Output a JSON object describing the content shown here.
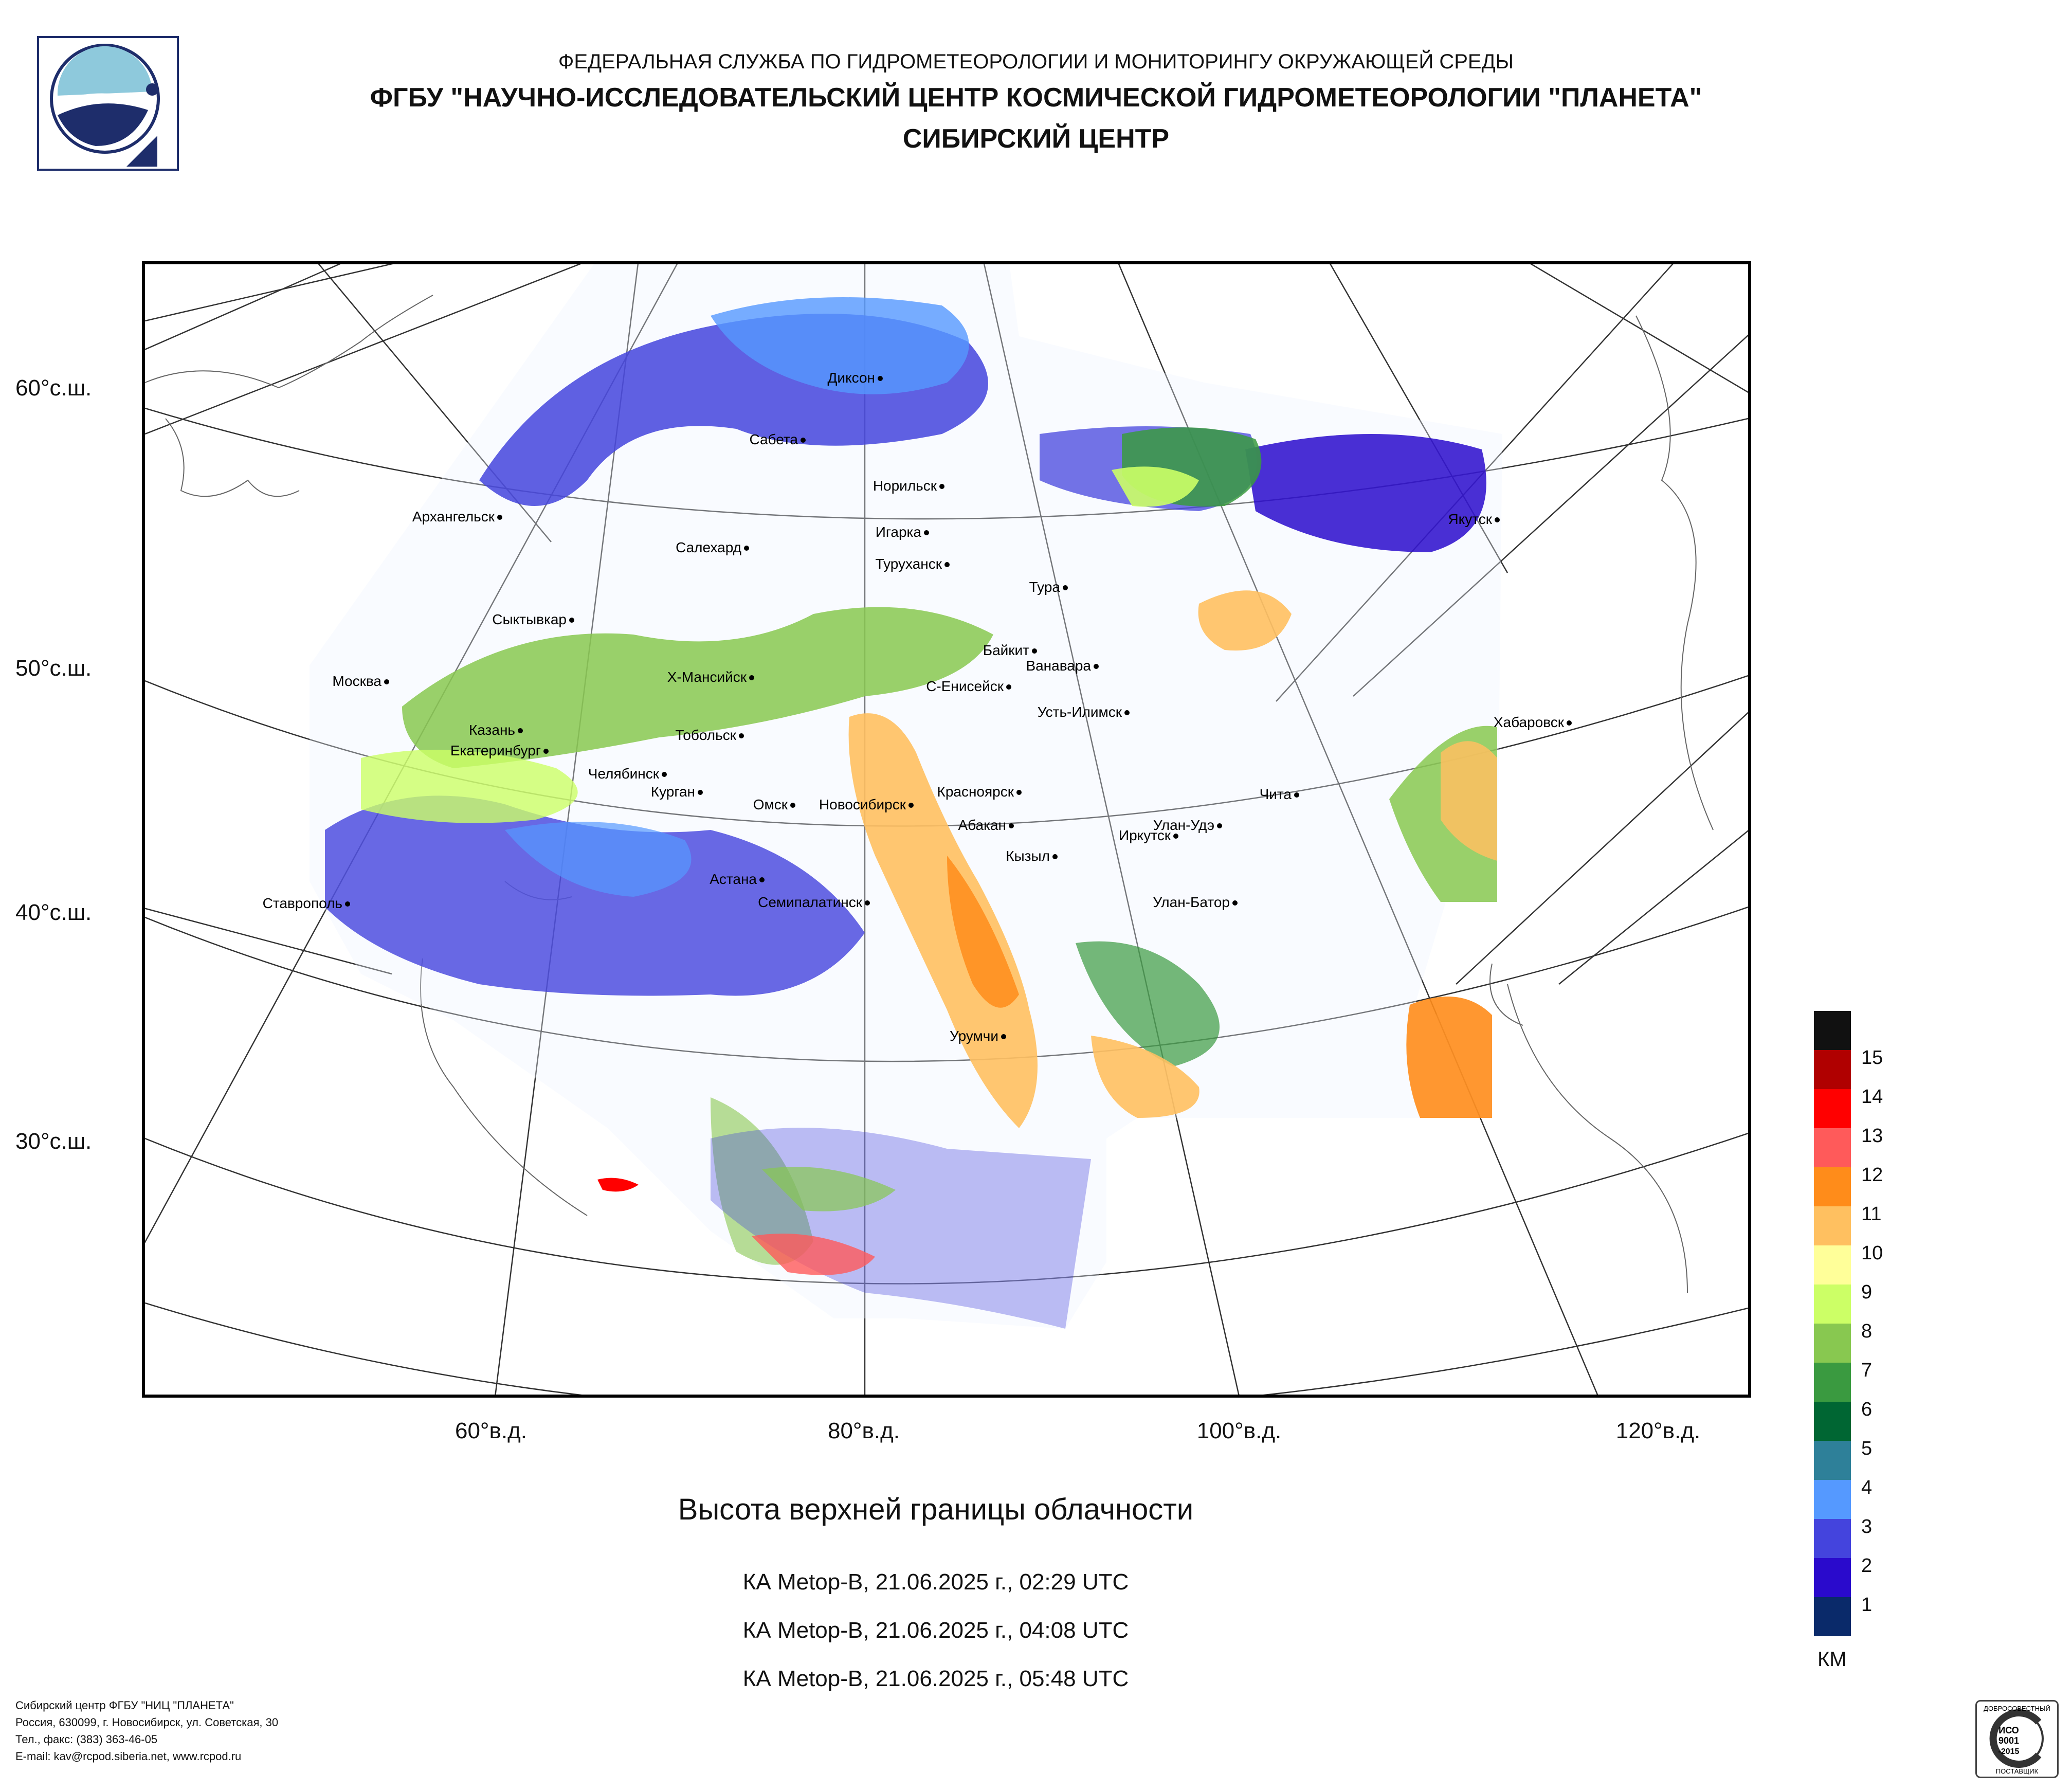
{
  "header": {
    "line1": "ФЕДЕРАЛЬНАЯ СЛУЖБА ПО ГИДРОМЕТЕОРОЛОГИИ И МОНИТОРИНГУ ОКРУЖАЮЩЕЙ СРЕДЫ",
    "line2": "ФГБУ \"НАУЧНО-ИССЛЕДОВАТЕЛЬСКИЙ ЦЕНТР КОСМИЧЕСКОЙ ГИДРОМЕТЕОРОЛОГИИ \"ПЛАНЕТА\"",
    "line3": "СИБИРСКИЙ ЦЕНТР"
  },
  "map": {
    "lat_labels": [
      "60°с.ш.",
      "50°с.ш.",
      "40°с.ш.",
      "30°с.ш."
    ],
    "lon_labels": [
      "60°в.д.",
      "80°в.д.",
      "100°в.д.",
      "120°в.д."
    ],
    "cities": [
      "Диксон",
      "Сабета",
      "Норильск",
      "Архангельск",
      "Салехард",
      "Игарка",
      "Туруханск",
      "Тура",
      "Якутск",
      "Сыктывкар",
      "Байкит",
      "Ванавара",
      "Москва",
      "Х-Мансийск",
      "С-Енисейск",
      "Усть-Илимск",
      "Хабаровск",
      "Казань",
      "Тобольск",
      "Екатеринбург",
      "Челябинск",
      "Курган",
      "Красноярск",
      "Омск",
      "Новосибирск",
      "Абакан",
      "Чита",
      "Улан-Удэ",
      "Иркутск",
      "Кызыл",
      "Астана",
      "Ставрополь",
      "Семипалатинск",
      "Улан-Батор",
      "Урумчи"
    ]
  },
  "title": "Высота верхней границы облачности",
  "passes": [
    "КА Metop-B, 21.06.2025 г., 02:29 UTC",
    "КА Metop-B, 21.06.2025 г., 04:08 UTC",
    "КА Metop-B, 21.06.2025 г., 05:48 UTC"
  ],
  "legend": {
    "unit": "КМ",
    "items": [
      {
        "label": "15",
        "color": "#111111"
      },
      {
        "label": "14",
        "color": "#b00000"
      },
      {
        "label": "13",
        "color": "#ff0000"
      },
      {
        "label": "12",
        "color": "#ff5a5a"
      },
      {
        "label": "11",
        "color": "#ff8c1a"
      },
      {
        "label": "10",
        "color": "#ffc060"
      },
      {
        "label": "9",
        "color": "#ffff99"
      },
      {
        "label": "8",
        "color": "#ccff66"
      },
      {
        "label": "7",
        "color": "#88c850"
      },
      {
        "label": "6",
        "color": "#3a9a40"
      },
      {
        "label": "5",
        "color": "#006633"
      },
      {
        "label": "4",
        "color": "#2e8099"
      },
      {
        "label": "3",
        "color": "#5599ff"
      },
      {
        "label": "2",
        "color": "#4444dd"
      },
      {
        "label": "1",
        "color": "#2a0acc"
      },
      {
        "label": "",
        "color": "#0a2a6a"
      }
    ]
  },
  "footer": {
    "line1": "Сибирский центр ФГБУ \"НИЦ \"ПЛАНЕТА\"",
    "line2": "Россия, 630099, г. Новосибирск, ул. Советская, 30",
    "line3": "Тел., факс: (383) 363-46-05",
    "line4": "E-mail: kav@rcpod.siberia.net, www.rcpod.ru"
  },
  "cert": {
    "top": "ДОБРОСОВЕСТНЫЙ",
    "mid1": "ИСО",
    "mid2": "9001",
    "mid3": "-2015",
    "bottom": "ПОСТАВЩИК"
  }
}
